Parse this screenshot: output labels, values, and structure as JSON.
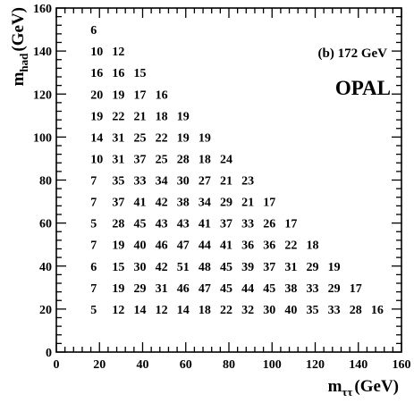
{
  "chart_data": {
    "type": "heatmap",
    "title": "",
    "xlabel": {
      "main": "m",
      "sub": "ττ",
      "unit": "(GeV)"
    },
    "ylabel": {
      "main": "m",
      "sub": "had",
      "unit": "(GeV)"
    },
    "xlim": [
      0,
      160
    ],
    "ylim": [
      0,
      160
    ],
    "x_ticks": [
      0,
      20,
      40,
      60,
      80,
      100,
      120,
      140,
      160
    ],
    "y_ticks": [
      0,
      20,
      40,
      60,
      80,
      100,
      120,
      140,
      160
    ],
    "x_tick_labels": [
      "0",
      "20",
      "40",
      "60",
      "80",
      "100",
      "120",
      "140",
      "160"
    ],
    "y_tick_labels": [
      "0",
      "20",
      "40",
      "60",
      "80",
      "100",
      "120",
      "140",
      "160"
    ],
    "x_bin_width": 10,
    "x_centers": [
      20,
      30,
      40,
      50,
      60,
      70,
      80,
      90,
      100,
      110,
      120,
      130,
      140,
      150
    ],
    "rows": [
      {
        "y": 20,
        "values": [
          5,
          12,
          14,
          12,
          14,
          18,
          22,
          32,
          30,
          40,
          35,
          33,
          28,
          16
        ]
      },
      {
        "y": 30,
        "values": [
          7,
          19,
          29,
          31,
          46,
          47,
          45,
          44,
          45,
          38,
          33,
          29,
          17
        ]
      },
      {
        "y": 40,
        "values": [
          6,
          15,
          30,
          42,
          51,
          48,
          45,
          39,
          37,
          31,
          29,
          19
        ]
      },
      {
        "y": 50,
        "values": [
          7,
          19,
          40,
          46,
          47,
          44,
          41,
          36,
          36,
          22,
          18
        ]
      },
      {
        "y": 60,
        "values": [
          5,
          28,
          45,
          43,
          43,
          41,
          37,
          33,
          26,
          17
        ]
      },
      {
        "y": 70,
        "values": [
          7,
          37,
          41,
          42,
          38,
          34,
          29,
          21,
          17
        ]
      },
      {
        "y": 80,
        "values": [
          7,
          35,
          33,
          34,
          30,
          27,
          21,
          23
        ]
      },
      {
        "y": 90,
        "values": [
          10,
          31,
          37,
          25,
          28,
          18,
          24
        ]
      },
      {
        "y": 100,
        "values": [
          14,
          31,
          25,
          22,
          19,
          19
        ]
      },
      {
        "y": 110,
        "values": [
          19,
          22,
          21,
          18,
          19
        ]
      },
      {
        "y": 120,
        "values": [
          20,
          19,
          17,
          16
        ]
      },
      {
        "y": 130,
        "values": [
          16,
          16,
          15
        ]
      },
      {
        "y": 140,
        "values": [
          10,
          12
        ]
      },
      {
        "y": 150,
        "values": [
          6
        ]
      }
    ],
    "annotations": [
      {
        "text": "(b) 172 GeV",
        "style": "small"
      },
      {
        "text": "OPAL",
        "style": "big"
      }
    ],
    "grid": false,
    "legend": "none"
  },
  "colors": {
    "background": "#ffffff",
    "ink": "#000000"
  }
}
